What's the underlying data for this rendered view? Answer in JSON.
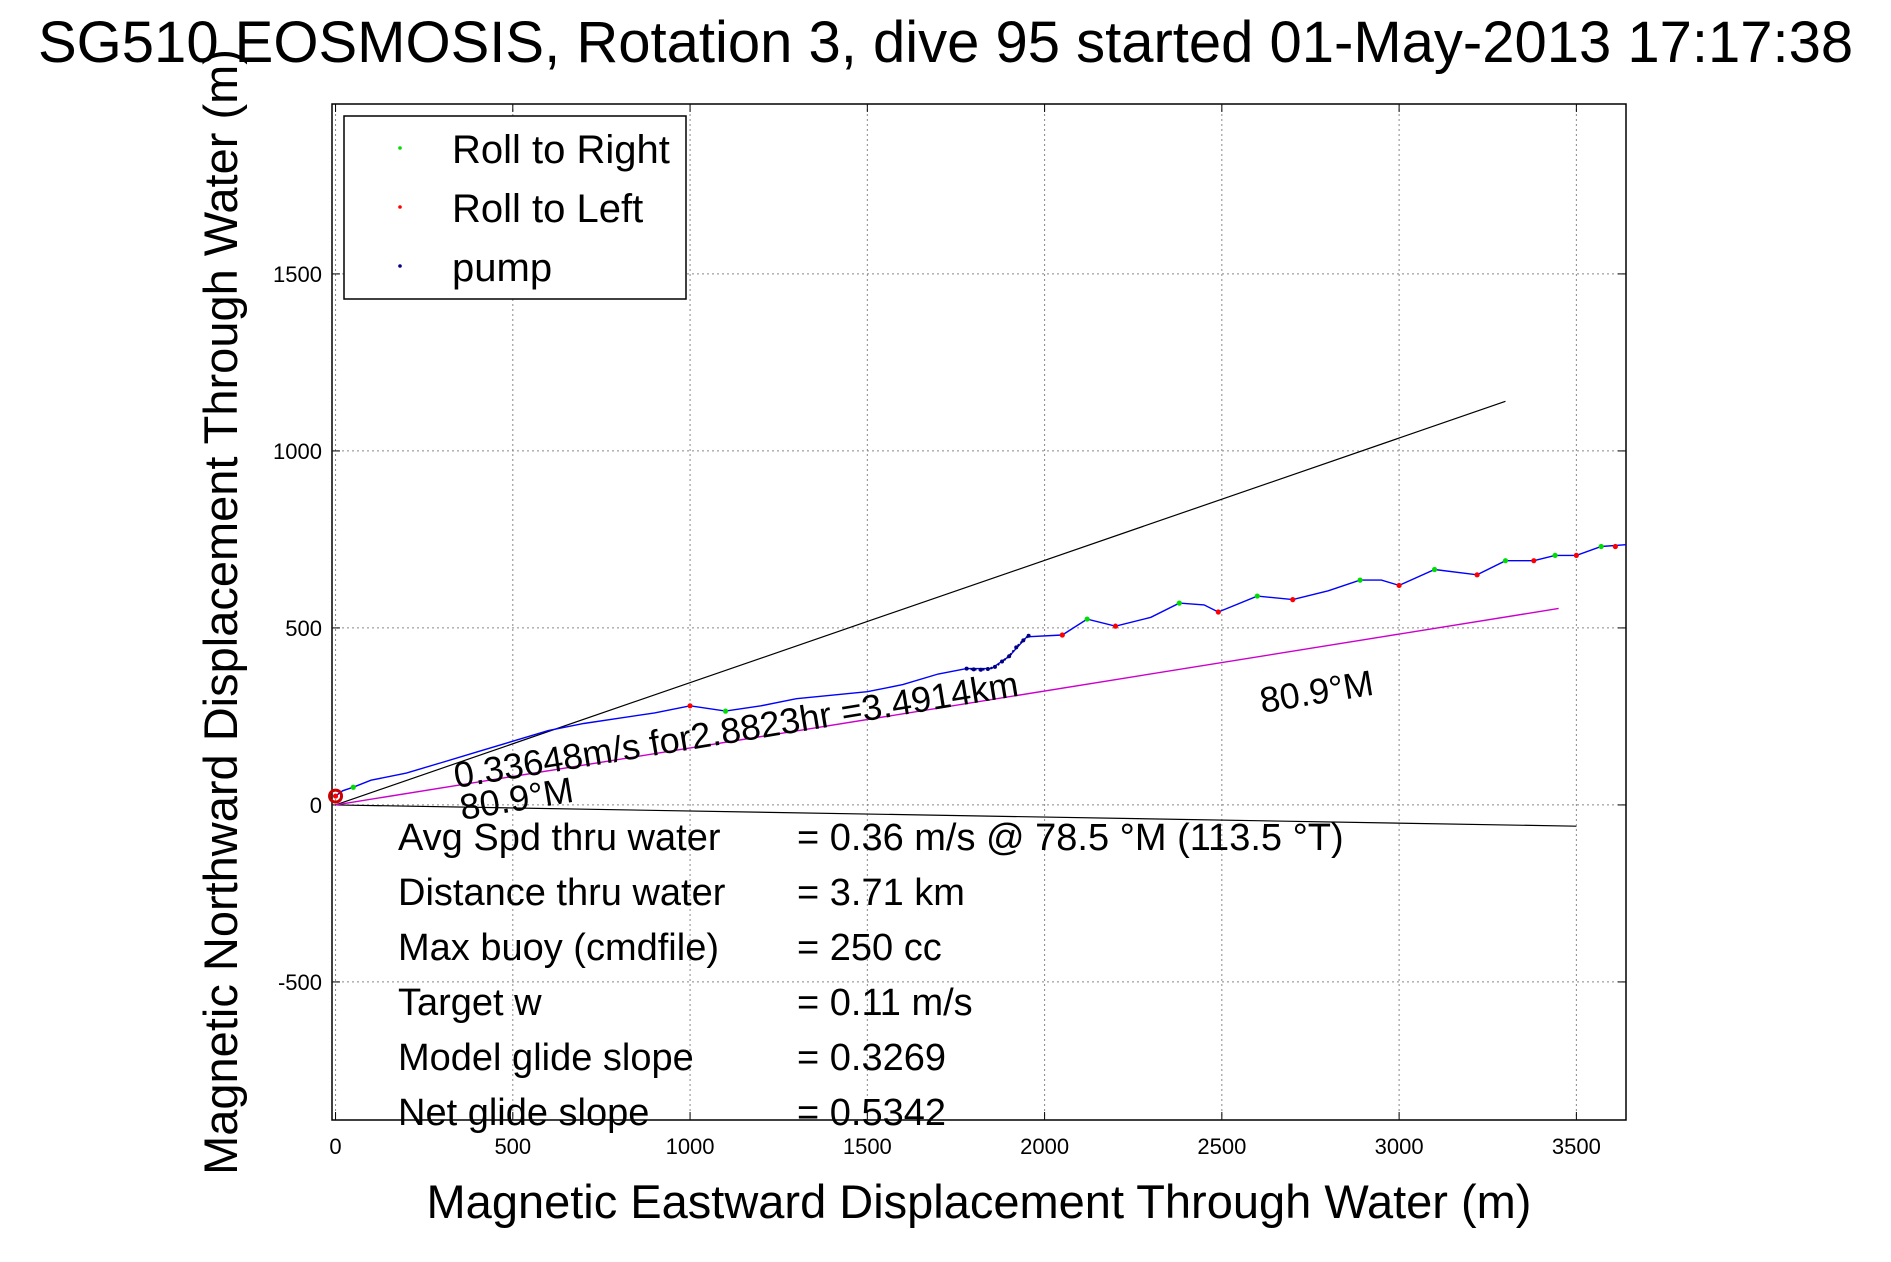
{
  "title": "SG510 EOSMOSIS, Rotation 3, dive 95 started 01-May-2013 17:17:38",
  "chart_data": {
    "type": "line",
    "xlabel": "Magnetic Eastward Displacement Through Water (m)",
    "ylabel": "Magnetic Northward Displacement Through Water (m)",
    "xlim": [
      -10,
      3640
    ],
    "ylim": [
      -890,
      1980
    ],
    "xticks": [
      0,
      500,
      1000,
      1500,
      2000,
      2500,
      3000,
      3500
    ],
    "xtick_labels": [
      "0",
      "500",
      "1000",
      "1500",
      "2000",
      "2500",
      "3000",
      "3500"
    ],
    "yticks": [
      -500,
      0,
      500,
      1000,
      1500
    ],
    "ytick_labels": [
      "-500",
      "0",
      "500",
      "1000",
      "1500"
    ],
    "grid": true,
    "legend_position": "top-left",
    "legend": [
      {
        "label": "Roll to Right",
        "color": "#00dd00"
      },
      {
        "label": "Roll to Left",
        "color": "#ff0000"
      },
      {
        "label": "pump",
        "color": "#000080"
      }
    ],
    "track": {
      "color": "#0000ff",
      "points": [
        [
          0,
          25
        ],
        [
          20,
          40
        ],
        [
          50,
          50
        ],
        [
          100,
          70
        ],
        [
          200,
          90
        ],
        [
          300,
          120
        ],
        [
          400,
          150
        ],
        [
          500,
          180
        ],
        [
          600,
          210
        ],
        [
          700,
          230
        ],
        [
          800,
          245
        ],
        [
          900,
          260
        ],
        [
          1000,
          280
        ],
        [
          1100,
          265
        ],
        [
          1200,
          280
        ],
        [
          1300,
          300
        ],
        [
          1400,
          310
        ],
        [
          1500,
          320
        ],
        [
          1600,
          340
        ],
        [
          1700,
          370
        ],
        [
          1780,
          385
        ],
        [
          1850,
          385
        ],
        [
          1900,
          420
        ],
        [
          1950,
          475
        ],
        [
          2050,
          480
        ],
        [
          2120,
          525
        ],
        [
          2200,
          505
        ],
        [
          2300,
          530
        ],
        [
          2380,
          570
        ],
        [
          2450,
          565
        ],
        [
          2490,
          545
        ],
        [
          2600,
          590
        ],
        [
          2700,
          580
        ],
        [
          2800,
          605
        ],
        [
          2890,
          635
        ],
        [
          2950,
          635
        ],
        [
          3000,
          620
        ],
        [
          3100,
          665
        ],
        [
          3220,
          650
        ],
        [
          3300,
          690
        ],
        [
          3380,
          690
        ],
        [
          3440,
          705
        ],
        [
          3500,
          705
        ],
        [
          3570,
          730
        ],
        [
          3640,
          735
        ]
      ]
    },
    "roll_right": [
      [
        50,
        50
      ],
      [
        1100,
        265
      ],
      [
        2120,
        525
      ],
      [
        2380,
        570
      ],
      [
        2600,
        590
      ],
      [
        2890,
        635
      ],
      [
        3100,
        665
      ],
      [
        3300,
        690
      ],
      [
        3440,
        705
      ],
      [
        3570,
        730
      ]
    ],
    "roll_left": [
      [
        0,
        25
      ],
      [
        1000,
        280
      ],
      [
        2050,
        480
      ],
      [
        2200,
        505
      ],
      [
        2490,
        545
      ],
      [
        2700,
        580
      ],
      [
        3000,
        620
      ],
      [
        3220,
        650
      ],
      [
        3380,
        690
      ],
      [
        3500,
        705
      ],
      [
        3610,
        730
      ]
    ],
    "pump": [
      [
        1780,
        385
      ],
      [
        1800,
        383
      ],
      [
        1820,
        382
      ],
      [
        1840,
        384
      ],
      [
        1860,
        390
      ],
      [
        1880,
        405
      ],
      [
        1900,
        420
      ],
      [
        1920,
        445
      ],
      [
        1940,
        465
      ],
      [
        1955,
        478
      ]
    ],
    "black_lines": [
      {
        "from": [
          0,
          0
        ],
        "to": [
          3300,
          1140
        ],
        "color": "#000000"
      },
      {
        "from": [
          0,
          0
        ],
        "to": [
          3500,
          -60
        ],
        "color": "#000000"
      }
    ],
    "heading_line": {
      "from": [
        0,
        0
      ],
      "to": [
        3450,
        555
      ],
      "color": "#cc00cc"
    },
    "annotations": {
      "speed_text": "0.33648m/s for2.8823hr =3.4914km",
      "heading_right": "80.9°M",
      "heading_left": "80.9°M"
    },
    "stats": [
      {
        "label": "Avg Spd thru water",
        "value": "=  0.36 m/s @  78.5 °M (113.5 °T)"
      },
      {
        "label": "Distance thru water",
        "value": "=  3.71 km"
      },
      {
        "label": "Max buoy (cmdfile)",
        "value": "= 250 cc"
      },
      {
        "label": "Target w",
        "value": "= 0.11 m/s"
      },
      {
        "label": "Model glide slope",
        "value": "= 0.3269"
      },
      {
        "label": "Net glide slope",
        "value": "= 0.5342"
      }
    ]
  }
}
